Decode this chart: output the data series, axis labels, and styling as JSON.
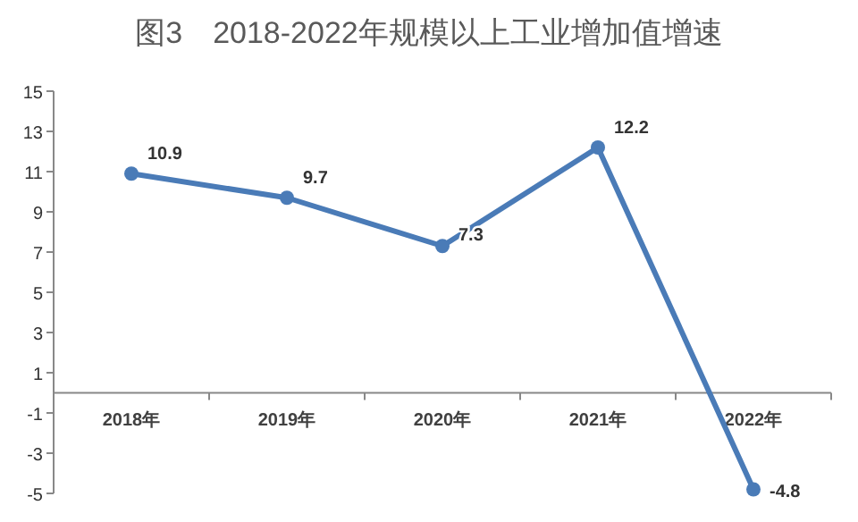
{
  "chart_data": {
    "type": "line",
    "title": "图3　2018-2022年规模以上工业增加值增速",
    "categories": [
      "2018年",
      "2019年",
      "2020年",
      "2021年",
      "2022年"
    ],
    "series": [
      {
        "color": "#4a7bb7",
        "values": [
          10.9,
          9.7,
          7.3,
          12.2,
          -4.8
        ]
      }
    ],
    "ylim": [
      -5,
      15
    ],
    "yticks": [
      -5,
      -3,
      -1,
      1,
      3,
      5,
      7,
      9,
      11,
      13,
      15
    ],
    "marker": "circle",
    "line_style": "solid",
    "data_labels": true
  }
}
